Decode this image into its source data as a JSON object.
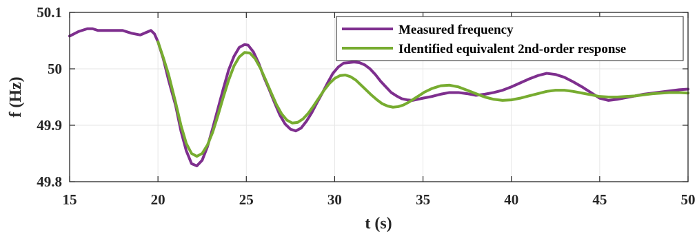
{
  "chart_data": {
    "type": "line",
    "xlabel": "t (s)",
    "ylabel": "f (Hz)",
    "xlim": [
      15,
      50
    ],
    "ylim": [
      49.8,
      50.1
    ],
    "x_ticks": [
      "15",
      "20",
      "25",
      "30",
      "35",
      "40",
      "45",
      "50"
    ],
    "y_ticks": [
      "49.8",
      "49.9",
      "50",
      "50.1"
    ],
    "x_tick_values": [
      15,
      20,
      25,
      30,
      35,
      40,
      45,
      50
    ],
    "y_tick_values": [
      49.8,
      49.9,
      50.0,
      50.1
    ],
    "grid": true,
    "legend_position": "top-right",
    "series": [
      {
        "name": "Measured frequency",
        "color": "#7E2F8E",
        "x": [
          15,
          15.5,
          16,
          16.3,
          16.6,
          17,
          17.5,
          18,
          18.5,
          19,
          19.3,
          19.6,
          19.8,
          20,
          20.3,
          20.6,
          21,
          21.3,
          21.6,
          21.9,
          22.2,
          22.5,
          22.8,
          23.1,
          23.4,
          23.7,
          24,
          24.3,
          24.6,
          24.9,
          25.1,
          25.4,
          25.7,
          26,
          26.3,
          26.6,
          26.9,
          27.2,
          27.5,
          27.8,
          28.1,
          28.4,
          28.7,
          29,
          29.3,
          29.6,
          29.9,
          30.2,
          30.5,
          30.8,
          31.1,
          31.4,
          31.7,
          32,
          32.3,
          32.6,
          32.9,
          33.2,
          33.5,
          33.8,
          34.1,
          34.4,
          34.7,
          35,
          35.5,
          36,
          36.5,
          37,
          37.5,
          38,
          38.5,
          39,
          39.5,
          40,
          40.5,
          41,
          41.5,
          42,
          42.5,
          43,
          43.5,
          44,
          44.5,
          45,
          45.5,
          46,
          46.5,
          47,
          47.5,
          48,
          48.5,
          49,
          49.5,
          50
        ],
        "y": [
          50.058,
          50.066,
          50.071,
          50.071,
          50.068,
          50.068,
          50.068,
          50.068,
          50.063,
          50.06,
          50.064,
          50.068,
          50.062,
          50.048,
          50.018,
          49.98,
          49.935,
          49.89,
          49.855,
          49.832,
          49.828,
          49.838,
          49.862,
          49.895,
          49.93,
          49.965,
          49.998,
          50.022,
          50.038,
          50.043,
          50.042,
          50.03,
          50.01,
          49.985,
          49.963,
          49.94,
          49.918,
          49.902,
          49.893,
          49.89,
          49.895,
          49.907,
          49.922,
          49.94,
          49.957,
          49.975,
          49.992,
          50.003,
          50.01,
          50.011,
          50.012,
          50.011,
          50.007,
          50.0,
          49.99,
          49.978,
          49.968,
          49.958,
          49.952,
          49.947,
          49.945,
          49.944,
          49.946,
          49.948,
          49.951,
          49.955,
          49.958,
          49.958,
          49.956,
          49.953,
          49.955,
          49.958,
          49.962,
          49.968,
          49.975,
          49.982,
          49.988,
          49.992,
          49.99,
          49.985,
          49.977,
          49.968,
          49.958,
          49.948,
          49.944,
          49.946,
          49.949,
          49.952,
          49.955,
          49.957,
          49.959,
          49.961,
          49.963,
          49.964
        ]
      },
      {
        "name": "Identified equivalent 2nd-order response",
        "color": "#77AC30",
        "x": [
          20,
          20.3,
          20.6,
          21,
          21.3,
          21.6,
          21.9,
          22.2,
          22.5,
          22.8,
          23.1,
          23.4,
          23.7,
          24,
          24.3,
          24.6,
          24.9,
          25.2,
          25.5,
          25.8,
          26.1,
          26.4,
          26.7,
          27,
          27.3,
          27.6,
          27.9,
          28.2,
          28.5,
          28.8,
          29.1,
          29.4,
          29.7,
          30,
          30.3,
          30.6,
          30.9,
          31.2,
          31.5,
          31.8,
          32.1,
          32.4,
          32.7,
          33,
          33.3,
          33.6,
          33.9,
          34.2,
          34.5,
          34.8,
          35.1,
          35.5,
          36,
          36.5,
          37,
          37.5,
          38,
          38.5,
          39,
          39.5,
          40,
          40.5,
          41,
          41.5,
          42,
          42.5,
          43,
          43.5,
          44,
          44.5,
          45,
          45.5,
          46,
          46.5,
          47,
          47.5,
          48,
          48.5,
          49,
          49.5,
          50
        ],
        "y": [
          50.048,
          50.02,
          49.99,
          49.94,
          49.9,
          49.868,
          49.85,
          49.845,
          49.85,
          49.865,
          49.888,
          49.918,
          49.95,
          49.98,
          50.005,
          50.021,
          50.029,
          50.028,
          50.018,
          50.001,
          49.98,
          49.958,
          49.937,
          49.92,
          49.909,
          49.904,
          49.905,
          49.911,
          49.921,
          49.934,
          49.948,
          49.962,
          49.974,
          49.983,
          49.988,
          49.989,
          49.986,
          49.98,
          49.971,
          49.962,
          49.953,
          49.945,
          49.938,
          49.934,
          49.932,
          49.933,
          49.936,
          49.941,
          49.947,
          49.953,
          49.959,
          49.965,
          49.97,
          49.971,
          49.968,
          49.962,
          49.956,
          49.95,
          49.946,
          49.944,
          49.945,
          49.948,
          49.952,
          49.956,
          49.96,
          49.962,
          49.962,
          49.96,
          49.957,
          49.954,
          49.951,
          49.95,
          49.95,
          49.951,
          49.952,
          49.954,
          49.956,
          49.957,
          49.958,
          49.958,
          49.957
        ]
      }
    ]
  }
}
